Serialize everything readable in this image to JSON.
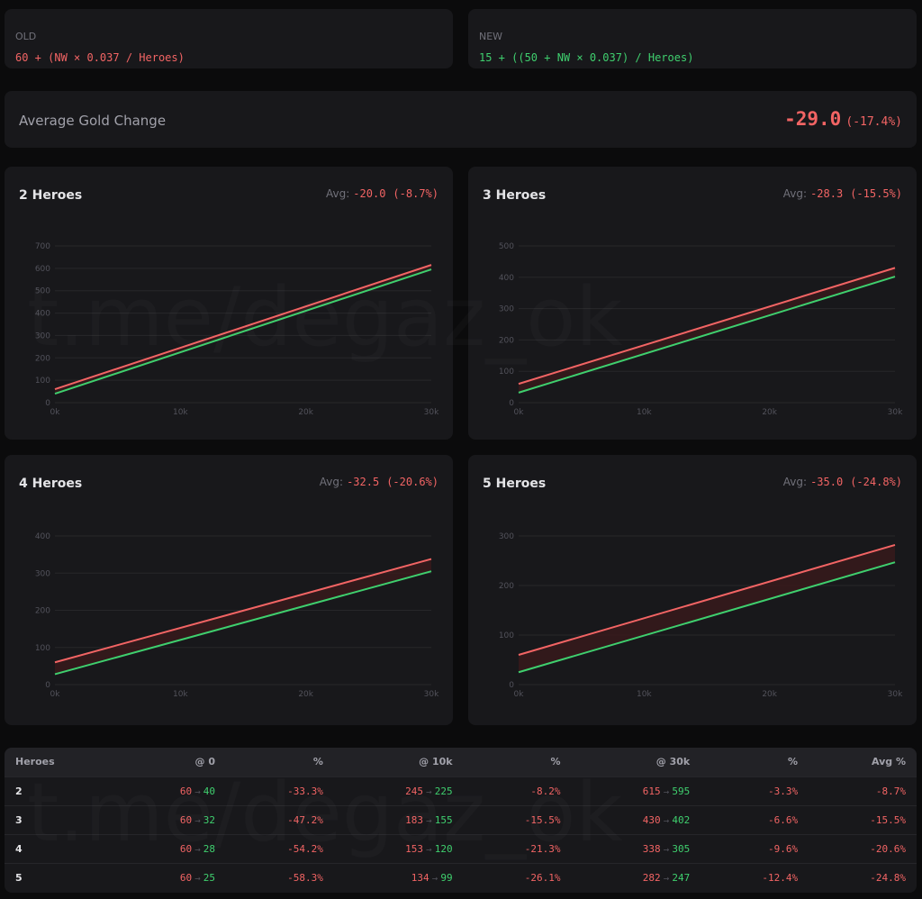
{
  "formulas": {
    "old_label": "OLD",
    "old_formula": "60 + (NW × 0.037 / Heroes)",
    "new_label": "NEW",
    "new_formula": "15 + ((50 + NW × 0.037) / Heroes)"
  },
  "summary": {
    "label": "Average Gold Change",
    "value": "-29.0",
    "percent": "(-17.4%)"
  },
  "watermark": "t.me/degaz_ok",
  "colors": {
    "old": "#f26464",
    "new": "#3fcf6e",
    "fill": "#3a1a1c"
  },
  "chart_data": [
    {
      "type": "line",
      "title": "2 Heroes",
      "avg_label": "Avg:",
      "avg": "-20.0",
      "avg_pct": "(-8.7%)",
      "x": [
        0,
        30000
      ],
      "xticks": [
        "0k",
        "10k",
        "20k",
        "30k"
      ],
      "ylim": [
        0,
        700
      ],
      "ystep": 100,
      "series": [
        {
          "name": "old",
          "values": [
            60,
            615
          ]
        },
        {
          "name": "new",
          "values": [
            40,
            595
          ]
        }
      ]
    },
    {
      "type": "line",
      "title": "3 Heroes",
      "avg_label": "Avg:",
      "avg": "-28.3",
      "avg_pct": "(-15.5%)",
      "x": [
        0,
        30000
      ],
      "xticks": [
        "0k",
        "10k",
        "20k",
        "30k"
      ],
      "ylim": [
        0,
        500
      ],
      "ystep": 100,
      "series": [
        {
          "name": "old",
          "values": [
            60,
            430
          ]
        },
        {
          "name": "new",
          "values": [
            32,
            402
          ]
        }
      ]
    },
    {
      "type": "line",
      "title": "4 Heroes",
      "avg_label": "Avg:",
      "avg": "-32.5",
      "avg_pct": "(-20.6%)",
      "x": [
        0,
        30000
      ],
      "xticks": [
        "0k",
        "10k",
        "20k",
        "30k"
      ],
      "ylim": [
        0,
        400
      ],
      "ystep": 100,
      "series": [
        {
          "name": "old",
          "values": [
            60,
            338
          ]
        },
        {
          "name": "new",
          "values": [
            28,
            305
          ]
        }
      ]
    },
    {
      "type": "line",
      "title": "5 Heroes",
      "avg_label": "Avg:",
      "avg": "-35.0",
      "avg_pct": "(-24.8%)",
      "x": [
        0,
        30000
      ],
      "xticks": [
        "0k",
        "10k",
        "20k",
        "30k"
      ],
      "ylim": [
        0,
        300
      ],
      "ystep": 100,
      "series": [
        {
          "name": "old",
          "values": [
            60,
            282
          ]
        },
        {
          "name": "new",
          "values": [
            25,
            247
          ]
        }
      ]
    }
  ],
  "table": {
    "headers": [
      "Heroes",
      "@ 0",
      "%",
      "@ 10k",
      "%",
      "@ 30k",
      "%",
      "Avg %"
    ],
    "rows": [
      {
        "heroes": "2",
        "o0": "60",
        "n0": "40",
        "p0": "-33.3%",
        "o10": "245",
        "n10": "225",
        "p10": "-8.2%",
        "o30": "615",
        "n30": "595",
        "p30": "-3.3%",
        "avg": "-8.7%"
      },
      {
        "heroes": "3",
        "o0": "60",
        "n0": "32",
        "p0": "-47.2%",
        "o10": "183",
        "n10": "155",
        "p10": "-15.5%",
        "o30": "430",
        "n30": "402",
        "p30": "-6.6%",
        "avg": "-15.5%"
      },
      {
        "heroes": "4",
        "o0": "60",
        "n0": "28",
        "p0": "-54.2%",
        "o10": "153",
        "n10": "120",
        "p10": "-21.3%",
        "o30": "338",
        "n30": "305",
        "p30": "-9.6%",
        "avg": "-20.6%"
      },
      {
        "heroes": "5",
        "o0": "60",
        "n0": "25",
        "p0": "-58.3%",
        "o10": "134",
        "n10": "99",
        "p10": "-26.1%",
        "o30": "282",
        "n30": "247",
        "p30": "-12.4%",
        "avg": "-24.8%"
      }
    ],
    "arrow": "→"
  }
}
